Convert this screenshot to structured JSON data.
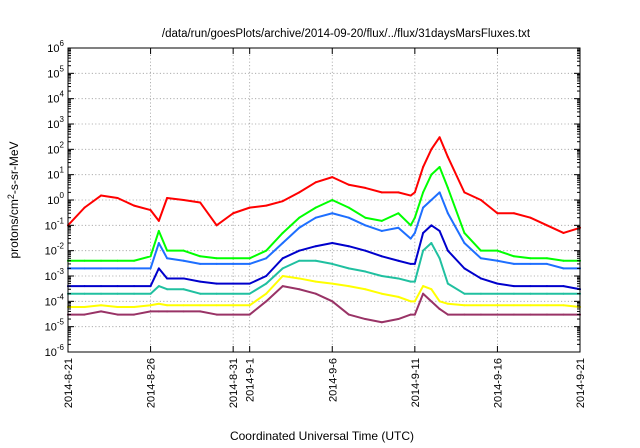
{
  "chart_data": {
    "type": "line",
    "title": "/data/run/goesPlots/archive/2014-09-20/flux/../flux/31daysMarsFluxes.txt",
    "xlabel": "Coordinated Universal Time (UTC)",
    "ylabel": "protons/cm2-s-sr-MeV",
    "y_scale": "log",
    "ylim": [
      1e-06,
      1000000.0
    ],
    "xlim": [
      "2014-8-21",
      "2014-9-21"
    ],
    "grid": true,
    "x_ticks": [
      "2014-8-21",
      "2014-8-26",
      "2014-8-31",
      "2014-9-1",
      "2014-9-6",
      "2014-9-11",
      "2014-9-16",
      "2014-9-21"
    ],
    "y_ticks": [
      "10-6",
      "10-5",
      "10-4",
      "10-3",
      "10-2",
      "10-1",
      "100",
      "101",
      "102",
      "103",
      "104",
      "105",
      "106"
    ],
    "x": [
      "2014-8-21",
      "2014-8-22",
      "2014-8-23",
      "2014-8-24",
      "2014-8-25",
      "2014-8-26",
      "2014-8-26 12:00",
      "2014-8-27",
      "2014-8-28",
      "2014-8-29",
      "2014-8-30",
      "2014-8-31",
      "2014-9-1",
      "2014-9-2",
      "2014-9-3",
      "2014-9-4",
      "2014-9-5",
      "2014-9-6",
      "2014-9-7",
      "2014-9-8",
      "2014-9-9",
      "2014-9-10",
      "2014-9-10 18:00",
      "2014-9-11",
      "2014-9-11 12:00",
      "2014-9-12",
      "2014-9-12 12:00",
      "2014-9-13",
      "2014-9-14",
      "2014-9-15",
      "2014-9-16",
      "2014-9-17",
      "2014-9-18",
      "2014-9-19",
      "2014-9-20",
      "2014-9-21"
    ],
    "series": [
      {
        "color": "#ff0000",
        "values": [
          0.1,
          0.5,
          1.5,
          1.2,
          0.6,
          0.4,
          0.15,
          1.2,
          1.0,
          0.8,
          0.1,
          0.3,
          0.5,
          0.6,
          0.9,
          2,
          5,
          8,
          4,
          3,
          2,
          2,
          1.5,
          2,
          20,
          100,
          300,
          50,
          2,
          1,
          0.3,
          0.3,
          0.2,
          0.1,
          0.05,
          0.08
        ]
      },
      {
        "color": "#00ff00",
        "values": [
          0.004,
          0.004,
          0.004,
          0.004,
          0.004,
          0.006,
          0.06,
          0.01,
          0.01,
          0.006,
          0.005,
          0.005,
          0.005,
          0.01,
          0.05,
          0.2,
          0.5,
          1.0,
          0.5,
          0.2,
          0.15,
          0.3,
          0.1,
          0.2,
          2,
          10,
          20,
          3,
          0.05,
          0.01,
          0.01,
          0.006,
          0.005,
          0.005,
          0.004,
          0.004
        ]
      },
      {
        "color": "#1e6fff",
        "values": [
          0.002,
          0.002,
          0.002,
          0.002,
          0.002,
          0.002,
          0.02,
          0.005,
          0.004,
          0.003,
          0.003,
          0.003,
          0.003,
          0.005,
          0.02,
          0.08,
          0.2,
          0.3,
          0.2,
          0.1,
          0.06,
          0.08,
          0.03,
          0.05,
          0.5,
          1,
          2,
          0.3,
          0.02,
          0.005,
          0.004,
          0.003,
          0.003,
          0.003,
          0.002,
          0.002
        ]
      },
      {
        "color": "#0000cc",
        "values": [
          0.0004,
          0.0004,
          0.0004,
          0.0004,
          0.0004,
          0.0004,
          0.002,
          0.0008,
          0.0008,
          0.0006,
          0.0005,
          0.0005,
          0.0005,
          0.001,
          0.005,
          0.01,
          0.015,
          0.02,
          0.015,
          0.01,
          0.006,
          0.004,
          0.003,
          0.003,
          0.05,
          0.1,
          0.06,
          0.01,
          0.002,
          0.0008,
          0.0005,
          0.0004,
          0.0004,
          0.0004,
          0.0004,
          0.0003
        ]
      },
      {
        "color": "#20c0a0",
        "values": [
          0.0002,
          0.0002,
          0.0002,
          0.0002,
          0.0002,
          0.0002,
          0.0004,
          0.0003,
          0.0003,
          0.0002,
          0.0002,
          0.0002,
          0.0002,
          0.0005,
          0.002,
          0.004,
          0.004,
          0.003,
          0.002,
          0.0015,
          0.001,
          0.0008,
          0.0006,
          0.0006,
          0.01,
          0.02,
          0.005,
          0.0005,
          0.0002,
          0.0002,
          0.0002,
          0.0002,
          0.0002,
          0.0002,
          0.0002,
          0.0002
        ]
      },
      {
        "color": "#ffff00",
        "values": [
          6e-05,
          6e-05,
          7e-05,
          6e-05,
          6e-05,
          7e-05,
          8e-05,
          7e-05,
          7e-05,
          7e-05,
          7e-05,
          7e-05,
          7e-05,
          0.0002,
          0.001,
          0.0008,
          0.0006,
          0.0005,
          0.0004,
          0.0003,
          0.0002,
          0.00015,
          0.0001,
          0.0001,
          0.0004,
          0.0003,
          0.0001,
          8e-05,
          7e-05,
          7e-05,
          7e-05,
          7e-05,
          7e-05,
          7e-05,
          7e-05,
          6e-05
        ]
      },
      {
        "color": "#993366",
        "values": [
          3e-05,
          3e-05,
          4e-05,
          3e-05,
          3e-05,
          4e-05,
          4e-05,
          4e-05,
          4e-05,
          4e-05,
          3e-05,
          3e-05,
          3e-05,
          0.0001,
          0.0004,
          0.0003,
          0.0002,
          0.0001,
          3e-05,
          2e-05,
          1.5e-05,
          2e-05,
          3e-05,
          3e-05,
          0.0002,
          0.0001,
          5e-05,
          3e-05,
          3e-05,
          3e-05,
          3e-05,
          3e-05,
          3e-05,
          3e-05,
          3e-05,
          3e-05
        ]
      }
    ]
  }
}
